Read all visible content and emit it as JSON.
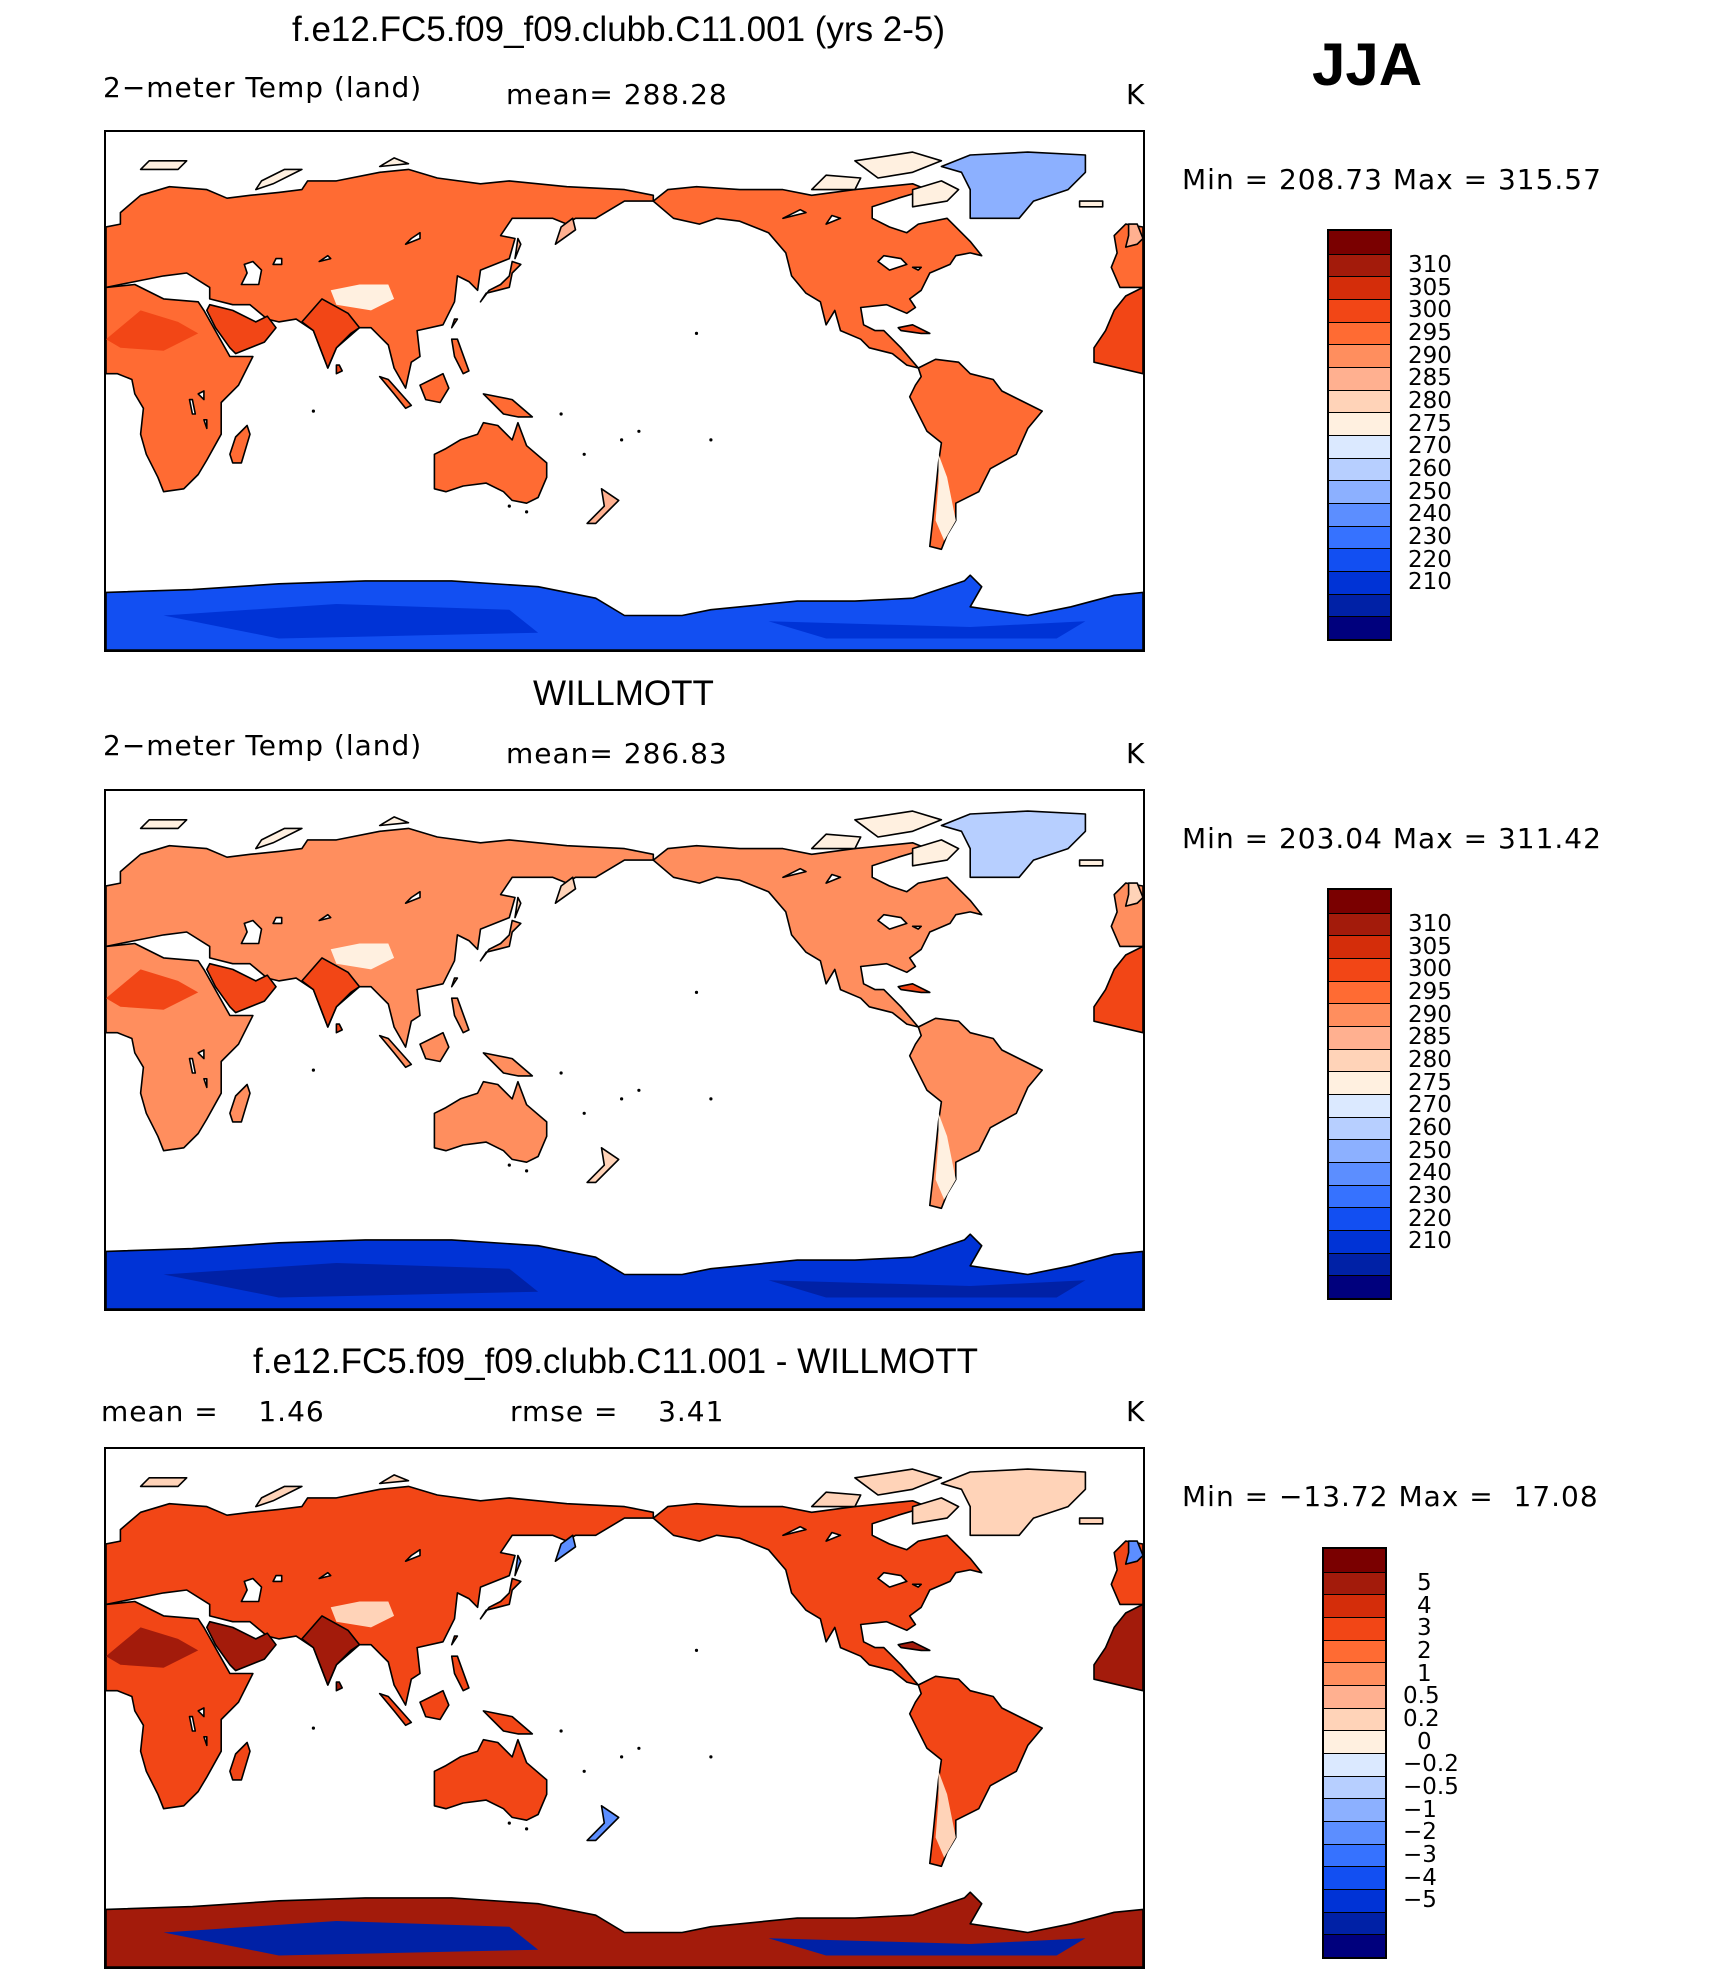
{
  "season": "JJA",
  "palette": {
    "abs": [
      "#00007d",
      "#0021a6",
      "#0033d6",
      "#124ff2",
      "#3672ff",
      "#5c8eff",
      "#8cb0ff",
      "#b7cfff",
      "#dbe9ff",
      "#fff0e0",
      "#ffd3b8",
      "#ffb090",
      "#ff8e5e",
      "#ff6b33",
      "#f24616",
      "#d42d0a",
      "#a31b0b",
      "#7a0000"
    ],
    "diff": [
      "#00007d",
      "#0021a6",
      "#0033d6",
      "#124ff2",
      "#3672ff",
      "#5c8eff",
      "#8cb0ff",
      "#b7cfff",
      "#dbe9ff",
      "#fff0e0",
      "#ffd3b8",
      "#ffb090",
      "#ff8e5e",
      "#ff6b33",
      "#f24616",
      "#d42d0a",
      "#a31b0b",
      "#7a0000"
    ],
    "land_shades": {
      "p1": {
        "default": "#ff6b33",
        "warm": "#f24616",
        "cool": "#ffb090",
        "cold": "#fff0e0",
        "ice": "#8cb0ff",
        "antarctic": "#124ff2",
        "antarctic_deep": "#0033d6"
      },
      "p2": {
        "default": "#ff8e5e",
        "warm": "#f24616",
        "cool": "#ffd3b8",
        "cold": "#fff0e0",
        "ice": "#b7cfff",
        "antarctic": "#0033d6",
        "antarctic_deep": "#0021a6"
      },
      "p3": {
        "default": "#f24616",
        "warm": "#a31b0b",
        "cool": "#5c8eff",
        "cold": "#ffd3b8",
        "ice": "#ffd3b8",
        "antarctic": "#a31b0b",
        "antarctic_deep": "#0021a6"
      }
    }
  },
  "panels": [
    {
      "title": "f.e12.FC5.f09_f09.clubb.C11.001 (yrs 2-5)",
      "left_label": "2−meter Temp (land)",
      "mid_label": "mean= 288.28",
      "units": "K",
      "minmax": "Min = 208.73 Max = 315.57",
      "ticks": [
        "310",
        "305",
        "300",
        "295",
        "290",
        "285",
        "280",
        "275",
        "270",
        "260",
        "250",
        "240",
        "230",
        "220",
        "210"
      ]
    },
    {
      "title": "WILLMOTT",
      "left_label": "2−meter Temp (land)",
      "mid_label": "mean= 286.83",
      "units": "K",
      "minmax": "Min = 203.04 Max = 311.42",
      "ticks": [
        "310",
        "305",
        "300",
        "295",
        "290",
        "285",
        "280",
        "275",
        "270",
        "260",
        "250",
        "240",
        "230",
        "220",
        "210"
      ]
    },
    {
      "title": "f.e12.FC5.f09_f09.clubb.C11.001 - WILLMOTT",
      "left_label": "mean =    1.46",
      "mid_label": "rmse =    3.41",
      "units": "K",
      "minmax": "Min = −13.72 Max =  17.08",
      "ticks": [
        "5",
        "4",
        "3",
        "2",
        "1",
        "0.5",
        "0.2",
        "0",
        "−0.2",
        "−0.5",
        "−1",
        "−2",
        "−3",
        "−4",
        "−5"
      ]
    }
  ]
}
